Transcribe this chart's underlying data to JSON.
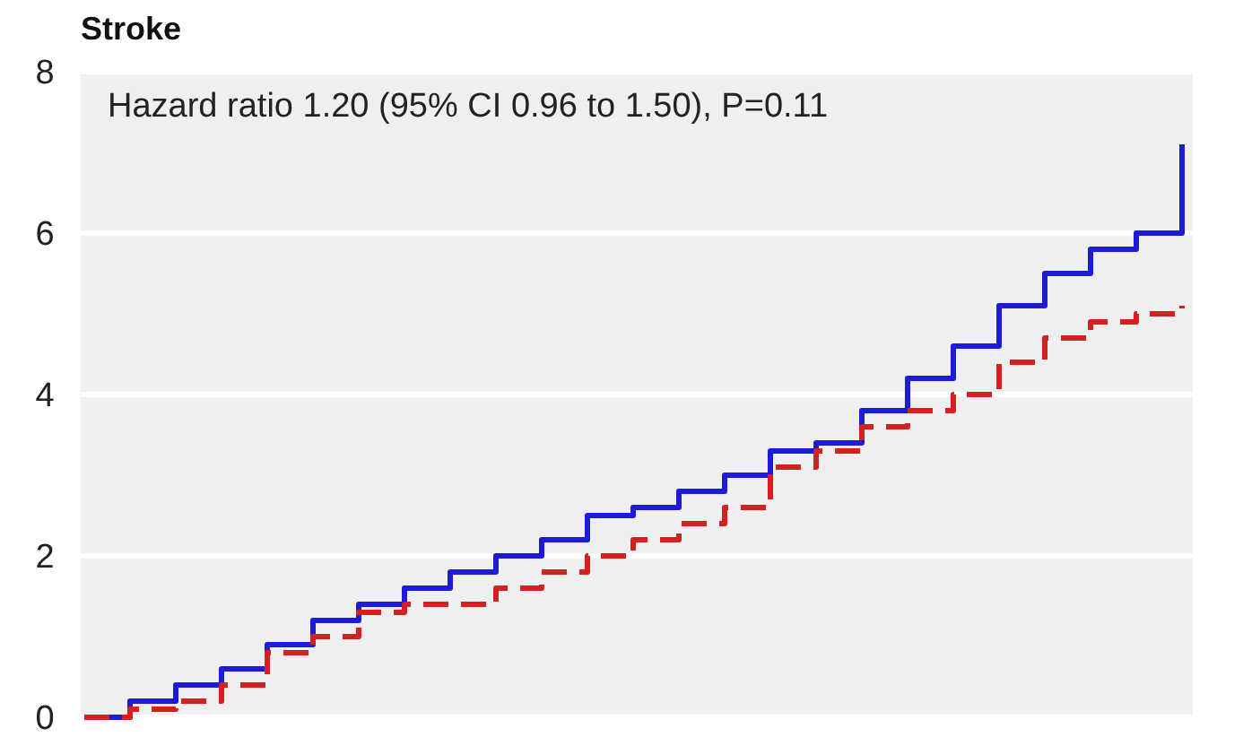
{
  "chart_data": {
    "type": "step",
    "title": "Stroke",
    "annotations": [
      "Hazard ratio 1.20 (95% CI 0.96 to 1.50), P=0.11"
    ],
    "categories": [
      null,
      null,
      null,
      null,
      null,
      null,
      null,
      null,
      null,
      null,
      null,
      null,
      null,
      null,
      null,
      null,
      null,
      null,
      null,
      null,
      null,
      null,
      null,
      null,
      null
    ],
    "series": [
      {
        "color": "#1c1cd8",
        "line_style": "solid",
        "values": [
          0,
          0.2,
          0.4,
          0.6,
          0.9,
          1.2,
          1.4,
          1.6,
          1.8,
          2.0,
          2.2,
          2.5,
          2.6,
          2.8,
          3.0,
          3.3,
          3.4,
          3.8,
          4.2,
          4.6,
          5.1,
          5.5,
          5.8,
          6.0,
          7.1
        ]
      },
      {
        "color": "#d42020",
        "line_style": "dashed",
        "values": [
          0,
          0.1,
          0.2,
          0.4,
          0.8,
          1.0,
          1.3,
          1.4,
          1.4,
          1.6,
          1.8,
          2.0,
          2.2,
          2.4,
          2.6,
          3.1,
          3.3,
          3.6,
          3.8,
          4.0,
          4.4,
          4.7,
          4.9,
          5.0,
          5.1
        ]
      }
    ],
    "ylim": [
      0,
      8
    ],
    "yticks": [
      0,
      2,
      4,
      6,
      8
    ],
    "grid": "y",
    "tick_labels": "y"
  }
}
